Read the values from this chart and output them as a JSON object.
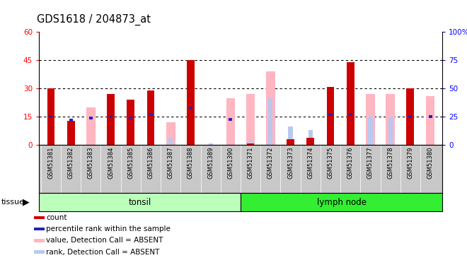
{
  "title": "GDS1618 / 204873_at",
  "samples": [
    "GSM51381",
    "GSM51382",
    "GSM51383",
    "GSM51384",
    "GSM51385",
    "GSM51386",
    "GSM51387",
    "GSM51388",
    "GSM51389",
    "GSM51390",
    "GSM51371",
    "GSM51372",
    "GSM51373",
    "GSM51374",
    "GSM51375",
    "GSM51376",
    "GSM51377",
    "GSM51378",
    "GSM51379",
    "GSM51380"
  ],
  "red_bars": [
    30,
    13,
    0,
    27,
    24,
    29,
    0,
    45,
    0,
    0,
    1,
    0,
    3,
    4,
    31,
    44,
    0,
    0,
    30,
    0
  ],
  "pink_bars": [
    0,
    0,
    20,
    0,
    0,
    0,
    12,
    0,
    0,
    25,
    27,
    39,
    0,
    0,
    0,
    0,
    27,
    27,
    0,
    26
  ],
  "blue_sq_pct": [
    25,
    22,
    24,
    25,
    24,
    27,
    0,
    33,
    0,
    23,
    0,
    0,
    0,
    0,
    27,
    27,
    0,
    0,
    25,
    25
  ],
  "light_blue_bars": [
    0,
    0,
    0,
    0,
    0,
    0,
    4,
    0,
    1,
    0,
    2,
    25,
    10,
    8,
    0,
    0,
    15,
    15,
    0,
    0
  ],
  "tonsil_count": 10,
  "lymph_count": 10,
  "ylim_left": [
    0,
    60
  ],
  "ylim_right": [
    0,
    100
  ],
  "yticks_left": [
    0,
    15,
    30,
    45,
    60
  ],
  "yticks_right": [
    0,
    25,
    50,
    75,
    100
  ],
  "red_color": "#CC0000",
  "pink_color": "#FFB6C1",
  "blue_color": "#2222BB",
  "light_blue_color": "#B8C8F0",
  "tonsil_color": "#BBFFBB",
  "lymph_color": "#33EE33",
  "xtick_bg": "#C8C8C8",
  "xtick_border": "#888888"
}
